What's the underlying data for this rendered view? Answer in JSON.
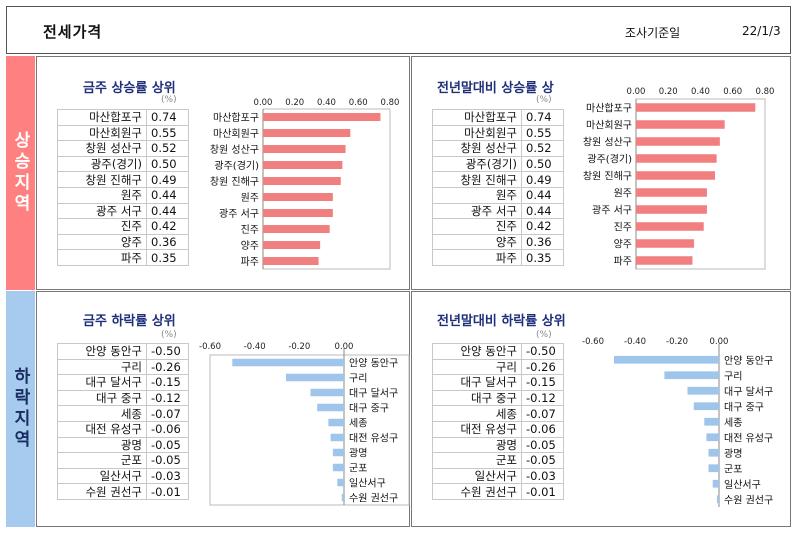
{
  "header": {
    "title": "전세가격",
    "basis_label": "조사기준일",
    "date": "22/1/3"
  },
  "sections": {
    "rise": "상승지역",
    "fall": "하락지역"
  },
  "unit": "(%)",
  "chart_data": [
    {
      "type": "bar",
      "title": "금주 상승률 상위",
      "categories": [
        "마산합포구",
        "마산회원구",
        "창원 성산구",
        "광주(경기)",
        "창원 진해구",
        "원주",
        "광주 서구",
        "진주",
        "양주",
        "파주"
      ],
      "values": [
        0.74,
        0.55,
        0.52,
        0.5,
        0.49,
        0.44,
        0.44,
        0.42,
        0.36,
        0.35
      ],
      "labels": [
        "0.74",
        "0.55",
        "0.52",
        "0.50",
        "0.49",
        "0.44",
        "0.44",
        "0.42",
        "0.36",
        "0.35"
      ],
      "xlim": [
        0,
        0.8
      ],
      "ticks": [
        "0.00",
        "0.20",
        "0.40",
        "0.60",
        "0.80"
      ],
      "color": "#f27f80"
    },
    {
      "type": "bar",
      "title": "전년말대비 상승률 상",
      "categories": [
        "마산합포구",
        "마산회원구",
        "창원 성산구",
        "광주(경기)",
        "창원 진해구",
        "원주",
        "광주 서구",
        "진주",
        "양주",
        "파주"
      ],
      "values": [
        0.74,
        0.55,
        0.52,
        0.5,
        0.49,
        0.44,
        0.44,
        0.42,
        0.36,
        0.35
      ],
      "labels": [
        "0.74",
        "0.55",
        "0.52",
        "0.50",
        "0.49",
        "0.44",
        "0.44",
        "0.42",
        "0.36",
        "0.35"
      ],
      "xlim": [
        0,
        0.8
      ],
      "ticks": [
        "0.00",
        "0.20",
        "0.40",
        "0.60",
        "0.80"
      ],
      "color": "#f27f80"
    },
    {
      "type": "bar",
      "title": "금주 하락률 상위",
      "categories": [
        "안양 동안구",
        "구리",
        "대구 달서구",
        "대구 중구",
        "세종",
        "대전 유성구",
        "광명",
        "군포",
        "일산서구",
        "수원 권선구"
      ],
      "values": [
        -0.5,
        -0.26,
        -0.15,
        -0.12,
        -0.07,
        -0.06,
        -0.05,
        -0.05,
        -0.03,
        -0.01
      ],
      "labels": [
        "-0.50",
        "-0.26",
        "-0.15",
        "-0.12",
        "-0.07",
        "-0.06",
        "-0.05",
        "-0.05",
        "-0.03",
        "-0.01"
      ],
      "xlim": [
        -0.6,
        0
      ],
      "ticks": [
        "-0.60",
        "-0.40",
        "-0.20",
        "0.00"
      ],
      "color": "#9fc5ea"
    },
    {
      "type": "bar",
      "title": "전년말대비 하락률 상위",
      "categories": [
        "안양 동안구",
        "구리",
        "대구 달서구",
        "대구 중구",
        "세종",
        "대전 유성구",
        "광명",
        "군포",
        "일산서구",
        "수원 권선구"
      ],
      "values": [
        -0.5,
        -0.26,
        -0.15,
        -0.12,
        -0.07,
        -0.06,
        -0.05,
        -0.05,
        -0.03,
        -0.01
      ],
      "labels": [
        "-0.50",
        "-0.26",
        "-0.15",
        "-0.12",
        "-0.07",
        "-0.06",
        "-0.05",
        "-0.05",
        "-0.03",
        "-0.01"
      ],
      "xlim": [
        -0.6,
        0
      ],
      "ticks": [
        "-0.60",
        "-0.40",
        "-0.20",
        "0.00"
      ],
      "color": "#9fc5ea"
    }
  ]
}
